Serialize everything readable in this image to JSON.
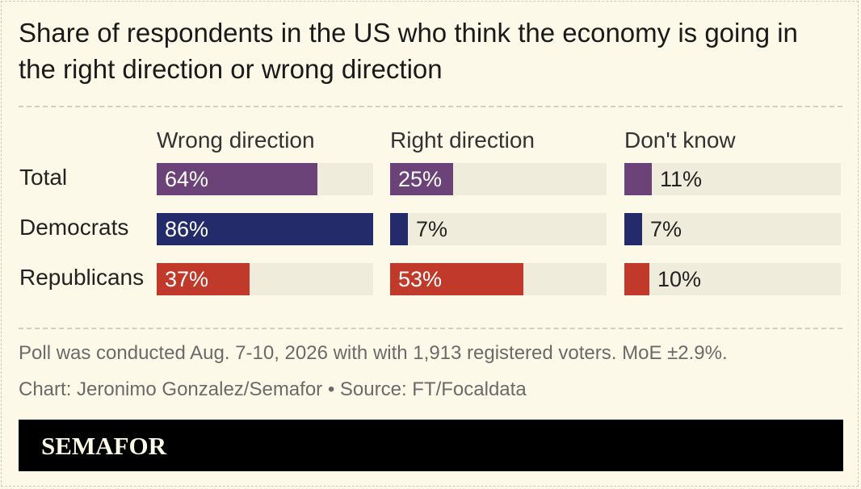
{
  "title": "Share of respondents in the US who think the economy is going in the right direction or wrong direction",
  "note": "Poll was conducted Aug. 7-10, 2026 with with 1,913 registered voters. MoE ±2.9%.",
  "credit": "Chart: Jeronimo Gonzalez/Semafor • Source: FT/Focaldata",
  "brand": "SEMAFOR",
  "colors": {
    "Total": "#6b4378",
    "Democrats": "#232b6b",
    "Republicans": "#c0392b",
    "track": "#f0ecdc",
    "background": "#fdf9e8"
  },
  "chart_data": {
    "type": "bar",
    "title": "Share of respondents in the US who think the economy is going in the right direction or wrong direction",
    "columns": [
      "Wrong direction",
      "Right direction",
      "Don't know"
    ],
    "categories": [
      "Total",
      "Democrats",
      "Republicans"
    ],
    "xlim": [
      0,
      86
    ],
    "series": [
      {
        "values": [
          64,
          25,
          11
        ]
      },
      {
        "values": [
          86,
          7,
          7
        ]
      },
      {
        "values": [
          37,
          53,
          10
        ]
      }
    ],
    "labels": [
      [
        "64%",
        "25%",
        "11%"
      ],
      [
        "86%",
        "7%",
        "7%"
      ],
      [
        "37%",
        "53%",
        "10%"
      ]
    ]
  }
}
